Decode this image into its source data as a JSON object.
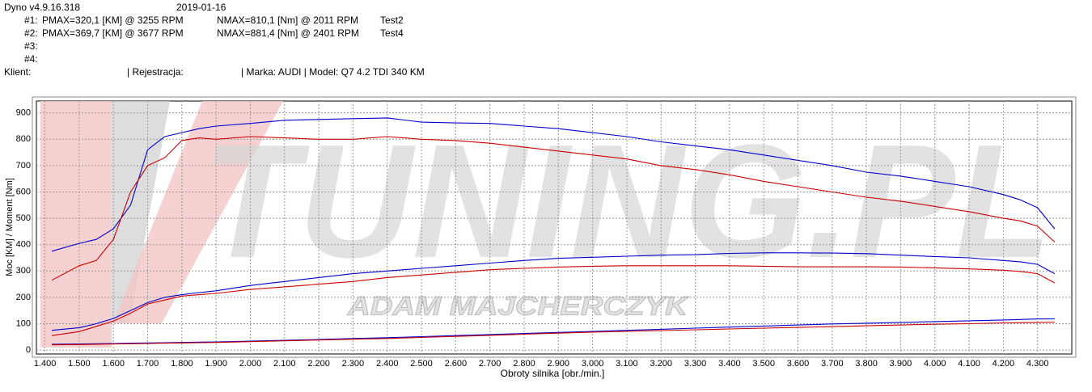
{
  "header": {
    "software": "Dyno v4.9.16.318",
    "date": "2019-01-16",
    "runs": [
      {
        "id": "#1:",
        "pmax": "PMAX=320,1 [KM] @ 3255 RPM",
        "nmax": "NMAX=810,1 [Nm] @ 2011 RPM",
        "test": "Test2"
      },
      {
        "id": "#2:",
        "pmax": "PMAX=369,7 [KM] @ 3677 RPM",
        "nmax": "NMAX=881,4 [Nm] @ 2401 RPM",
        "test": "Test4"
      },
      {
        "id": "#3:"
      },
      {
        "id": "#4:"
      }
    ],
    "client": "Klient:",
    "registration": "| Rejestracja:",
    "vehicle": "| Marka: AUDI | Model: Q7 4.2 TDI 340 KM"
  },
  "watermark": {
    "logo": "TUNING.PL",
    "author": "ADAM MAJCHERCZYK"
  },
  "chart_data": {
    "type": "line",
    "x_label": "Obroty silnika [obr./min.]",
    "y_label": "Moc [KM] / Moment [Nm]",
    "grid": true,
    "xlim": [
      1375,
      4400
    ],
    "ylim": [
      -15,
      945
    ],
    "xticks": [
      {
        "value": 1400,
        "label": "1.400"
      },
      {
        "value": 1500,
        "label": "1.500"
      },
      {
        "value": 1600,
        "label": "1.600"
      },
      {
        "value": 1700,
        "label": "1.700"
      },
      {
        "value": 1800,
        "label": "1.800"
      },
      {
        "value": 1900,
        "label": "1.900"
      },
      {
        "value": 2000,
        "label": "2.000"
      },
      {
        "value": 2100,
        "label": "2.100"
      },
      {
        "value": 2200,
        "label": "2.200"
      },
      {
        "value": 2300,
        "label": "2.300"
      },
      {
        "value": 2400,
        "label": "2.400"
      },
      {
        "value": 2500,
        "label": "2.500"
      },
      {
        "value": 2600,
        "label": "2.600"
      },
      {
        "value": 2700,
        "label": "2.700"
      },
      {
        "value": 2800,
        "label": "2.800"
      },
      {
        "value": 2900,
        "label": "2.900"
      },
      {
        "value": 3000,
        "label": "3.000"
      },
      {
        "value": 3100,
        "label": "3.100"
      },
      {
        "value": 3200,
        "label": "3.200"
      },
      {
        "value": 3300,
        "label": "3.300"
      },
      {
        "value": 3400,
        "label": "3.400"
      },
      {
        "value": 3500,
        "label": "3.500"
      },
      {
        "value": 3600,
        "label": "3.600"
      },
      {
        "value": 3700,
        "label": "3.700"
      },
      {
        "value": 3800,
        "label": "3.800"
      },
      {
        "value": 3900,
        "label": "3.900"
      },
      {
        "value": 4000,
        "label": "4.000"
      },
      {
        "value": 4100,
        "label": "4.100"
      },
      {
        "value": 4200,
        "label": "4.200"
      },
      {
        "value": 4300,
        "label": "4.300"
      }
    ],
    "yticks": [
      0,
      100,
      200,
      300,
      400,
      500,
      600,
      700,
      800,
      900
    ],
    "x": [
      1420,
      1500,
      1550,
      1600,
      1650,
      1700,
      1750,
      1800,
      1850,
      1900,
      2000,
      2100,
      2200,
      2300,
      2400,
      2500,
      2600,
      2700,
      2800,
      2900,
      3000,
      3100,
      3200,
      3300,
      3400,
      3500,
      3600,
      3700,
      3800,
      3900,
      4000,
      4100,
      4200,
      4250,
      4300,
      4350
    ],
    "series": [
      {
        "color": "#0000cc",
        "values": [
          375,
          405,
          420,
          460,
          550,
          760,
          810,
          825,
          840,
          850,
          860,
          872,
          875,
          878,
          881,
          865,
          862,
          860,
          850,
          840,
          825,
          810,
          790,
          775,
          760,
          740,
          720,
          700,
          675,
          660,
          640,
          620,
          590,
          570,
          540,
          460
        ]
      },
      {
        "color": "#cc0000",
        "values": [
          265,
          320,
          340,
          420,
          600,
          700,
          730,
          795,
          805,
          800,
          810,
          805,
          800,
          800,
          810,
          800,
          795,
          785,
          770,
          755,
          740,
          725,
          700,
          685,
          665,
          640,
          620,
          600,
          580,
          565,
          545,
          525,
          500,
          490,
          470,
          410
        ]
      },
      {
        "color": "#0000cc",
        "values": [
          75,
          85,
          100,
          120,
          150,
          180,
          200,
          210,
          218,
          225,
          245,
          260,
          275,
          290,
          300,
          310,
          320,
          330,
          340,
          348,
          352,
          356,
          360,
          362,
          367,
          369,
          369,
          368,
          366,
          360,
          355,
          350,
          340,
          335,
          325,
          290
        ]
      },
      {
        "color": "#cc0000",
        "values": [
          55,
          70,
          90,
          110,
          140,
          175,
          190,
          205,
          210,
          215,
          230,
          240,
          250,
          260,
          275,
          285,
          295,
          305,
          310,
          315,
          318,
          320,
          320,
          320,
          320,
          318,
          316,
          316,
          316,
          315,
          312,
          308,
          303,
          298,
          290,
          255
        ]
      },
      {
        "color": "#0000cc",
        "values": [
          22,
          23,
          24,
          25,
          26,
          27,
          28,
          29,
          30,
          31,
          34,
          37,
          40,
          44,
          47,
          51,
          55,
          59,
          63,
          67,
          71,
          75,
          79,
          83,
          87,
          91,
          95,
          99,
          102,
          105,
          108,
          111,
          114,
          116,
          118,
          118
        ]
      },
      {
        "color": "#cc0000",
        "values": [
          20,
          21,
          22,
          23,
          24,
          25,
          26,
          27,
          28,
          29,
          32,
          35,
          38,
          41,
          44,
          48,
          52,
          56,
          60,
          64,
          68,
          71,
          74,
          77,
          80,
          83,
          86,
          89,
          92,
          95,
          98,
          100,
          103,
          104,
          105,
          106
        ]
      }
    ]
  }
}
